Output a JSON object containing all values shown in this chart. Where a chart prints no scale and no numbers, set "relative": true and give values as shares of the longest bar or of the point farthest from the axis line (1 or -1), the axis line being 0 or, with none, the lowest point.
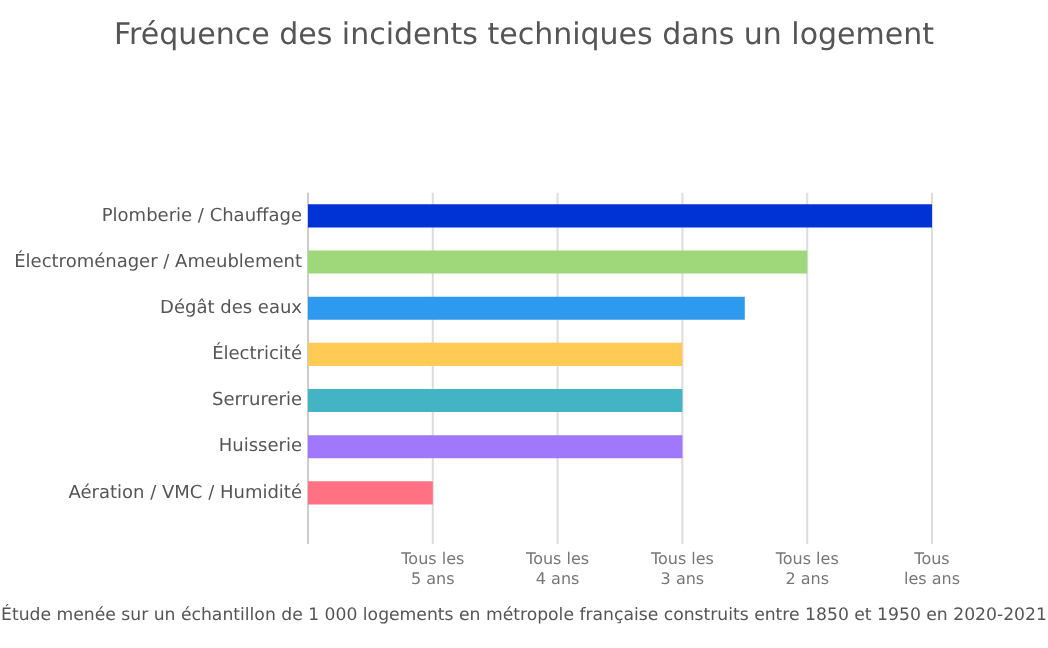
{
  "chart_data": {
    "type": "bar",
    "orientation": "horizontal",
    "relative": true,
    "title": "Fréquence des incidents techniques dans un logement",
    "categories": [
      "Plomberie / Chauffage",
      "Électroménager / Ameublement",
      "Dégât des eaux",
      "Électricité",
      "Serrurerie",
      "Huisserie",
      "Aération / VMC / Humidité"
    ],
    "values": [
      1,
      0.8,
      0.7,
      0.6,
      0.6,
      0.6,
      0.2
    ],
    "colors": [
      "#0033d6",
      "#9fd87a",
      "#2d9af0",
      "#ffcb55",
      "#42b4c4",
      "#a078fc",
      "#ff7183"
    ],
    "ref_lines": [
      {
        "axis": "x",
        "value": 0.2,
        "label": "Tous les 5 ans",
        "color": "#dddddd"
      },
      {
        "axis": "x",
        "value": 0.4,
        "label": "Tous les 4 ans",
        "color": "#dddddd"
      },
      {
        "axis": "x",
        "value": 0.6,
        "label": "Tous les 3 ans",
        "color": "#dddddd"
      },
      {
        "axis": "x",
        "value": 0.8,
        "label": "Tous les 2 ans",
        "color": "#dddddd"
      },
      {
        "axis": "x",
        "value": 1,
        "label": "Tous les ans",
        "color": "#dddddd"
      }
    ],
    "annotations": [
      "Étude menée sur un échantillon de 1 000 logements en métropole française construits entre 1850 et 1950 en 2020-2021"
    ]
  }
}
